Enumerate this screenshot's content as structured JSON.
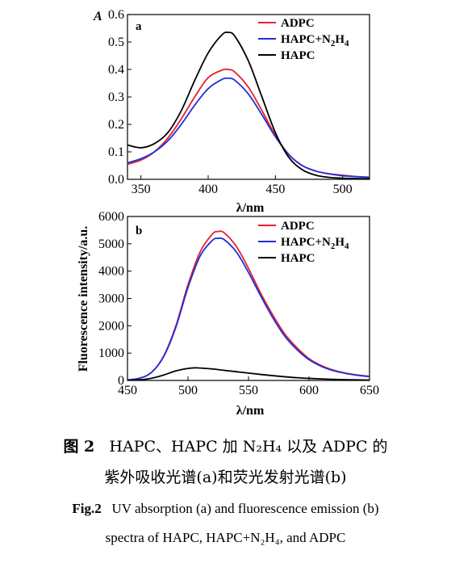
{
  "chart_data": [
    {
      "type": "line",
      "panel_label": "a",
      "ylabel": "A",
      "xlim": [
        340,
        520
      ],
      "ylim": [
        0,
        0.6
      ],
      "x_ticks": [
        350,
        400,
        450,
        500
      ],
      "y_ticks": [
        0.0,
        0.1,
        0.2,
        0.3,
        0.4,
        0.5,
        0.6
      ],
      "y_tick_labels": [
        "0.0",
        "0.1",
        "0.2",
        "0.3",
        "0.4",
        "0.5",
        "0.6"
      ],
      "x_tick_labels": [
        "350",
        "400",
        "450",
        "500"
      ],
      "legend_position": "top-right",
      "series": [
        {
          "name": "ADPC",
          "color": "#e8202a",
          "x": [
            340,
            350,
            360,
            370,
            380,
            390,
            400,
            410,
            415,
            420,
            430,
            440,
            450,
            460,
            470,
            480,
            490,
            500,
            510,
            520
          ],
          "y": [
            0.055,
            0.07,
            0.1,
            0.15,
            0.22,
            0.3,
            0.37,
            0.397,
            0.4,
            0.39,
            0.335,
            0.25,
            0.16,
            0.09,
            0.05,
            0.03,
            0.02,
            0.015,
            0.01,
            0.008
          ]
        },
        {
          "name": "HAPC+N2H4",
          "name_parts": [
            "HAPC+N",
            "2",
            "H",
            "4"
          ],
          "color": "#1f2fd8",
          "x": [
            340,
            350,
            360,
            370,
            380,
            390,
            400,
            410,
            415,
            420,
            430,
            440,
            450,
            460,
            470,
            480,
            490,
            500,
            510,
            520
          ],
          "y": [
            0.06,
            0.075,
            0.1,
            0.14,
            0.2,
            0.27,
            0.33,
            0.363,
            0.368,
            0.36,
            0.31,
            0.235,
            0.155,
            0.09,
            0.05,
            0.03,
            0.02,
            0.013,
            0.01,
            0.007
          ]
        },
        {
          "name": "HAPC",
          "color": "#000000",
          "x": [
            340,
            350,
            360,
            370,
            380,
            390,
            400,
            410,
            415,
            420,
            430,
            440,
            450,
            460,
            470,
            480,
            490,
            500,
            510,
            520
          ],
          "y": [
            0.125,
            0.115,
            0.13,
            0.17,
            0.25,
            0.36,
            0.46,
            0.525,
            0.535,
            0.52,
            0.43,
            0.3,
            0.17,
            0.08,
            0.035,
            0.015,
            0.007,
            0.004,
            0.003,
            0.002
          ]
        }
      ]
    },
    {
      "type": "line",
      "panel_label": "b",
      "xlabel": "λ/nm",
      "ylabel": "Fluorescence intensity/a.u.",
      "xlim": [
        450,
        650
      ],
      "ylim": [
        0,
        6000
      ],
      "x_ticks": [
        450,
        500,
        550,
        600,
        650
      ],
      "y_ticks": [
        0,
        1000,
        2000,
        3000,
        4000,
        5000,
        6000
      ],
      "x_tick_labels": [
        "450",
        "500",
        "550",
        "600",
        "650"
      ],
      "y_tick_labels": [
        "0",
        "1000",
        "2000",
        "3000",
        "4000",
        "5000",
        "6000"
      ],
      "legend_position": "top-right",
      "series": [
        {
          "name": "ADPC",
          "color": "#e8202a",
          "x": [
            450,
            460,
            470,
            480,
            490,
            500,
            510,
            520,
            525,
            530,
            540,
            550,
            560,
            570,
            580,
            590,
            600,
            610,
            620,
            630,
            640,
            650
          ],
          "y": [
            20,
            80,
            300,
            900,
            2000,
            3500,
            4700,
            5350,
            5450,
            5400,
            4900,
            4100,
            3200,
            2400,
            1700,
            1200,
            800,
            550,
            380,
            270,
            200,
            150
          ]
        },
        {
          "name": "HAPC+N2H4",
          "name_parts": [
            "HAPC+N",
            "2",
            "H",
            "4"
          ],
          "color": "#1f2fd8",
          "x": [
            450,
            460,
            470,
            480,
            490,
            500,
            510,
            520,
            525,
            530,
            540,
            550,
            560,
            570,
            580,
            590,
            600,
            610,
            620,
            630,
            640,
            650
          ],
          "y": [
            20,
            80,
            300,
            880,
            1950,
            3400,
            4550,
            5120,
            5200,
            5150,
            4700,
            3950,
            3100,
            2300,
            1620,
            1130,
            760,
            520,
            360,
            260,
            190,
            140
          ]
        },
        {
          "name": "HAPC",
          "color": "#000000",
          "x": [
            450,
            460,
            470,
            480,
            490,
            500,
            505,
            510,
            520,
            530,
            540,
            550,
            560,
            570,
            580,
            590,
            600,
            610,
            620,
            630,
            640,
            650
          ],
          "y": [
            0,
            20,
            80,
            200,
            350,
            440,
            460,
            455,
            420,
            370,
            320,
            270,
            220,
            175,
            135,
            100,
            75,
            55,
            40,
            30,
            20,
            15
          ]
        }
      ]
    }
  ],
  "shared_x_title": "λ/nm",
  "caption": {
    "zh_line1_label": "图 2",
    "zh_line1_text": "HAPC、HAPC 加 N₂H₄ 以及 ADPC 的",
    "zh_line2_text": "紫外吸收光谱(a)和荧光发射光谱(b)",
    "en_line1_label": "Fig.2",
    "en_line1_text": "UV absorption (a) and fluorescence emission (b)",
    "en_line2_text": "spectra of HAPC, HAPC+N₂H₄, and ADPC"
  }
}
